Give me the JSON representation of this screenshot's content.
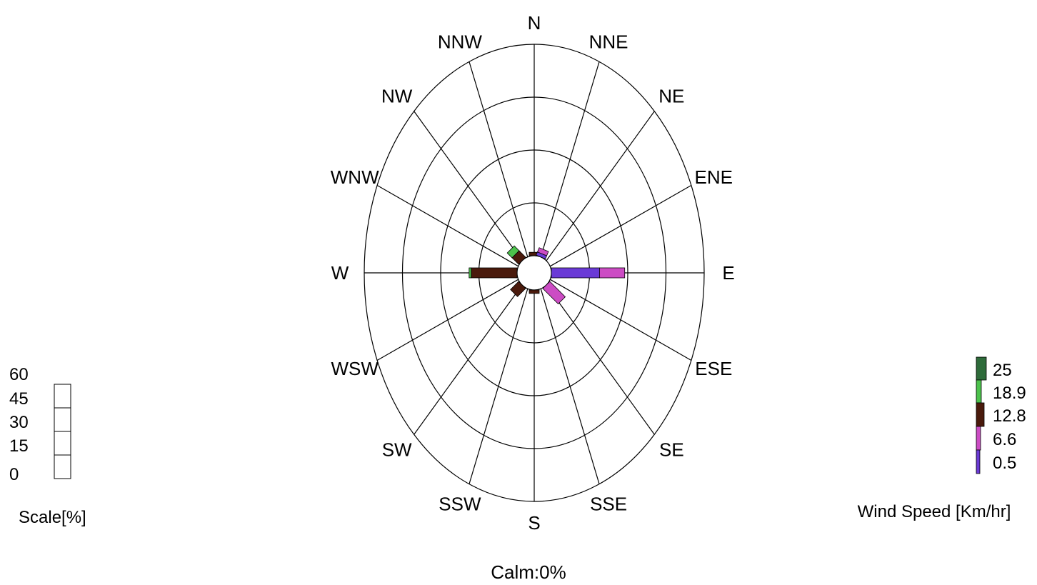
{
  "chart_data": {
    "type": "wind-rose",
    "directions": [
      "N",
      "NNE",
      "NE",
      "ENE",
      "E",
      "ESE",
      "SE",
      "SSE",
      "S",
      "SSW",
      "SW",
      "WSW",
      "W",
      "WNW",
      "NW",
      "NNW"
    ],
    "calm_label": "Calm:0%",
    "scale": {
      "title": "Scale[%]",
      "ticks": [
        "60",
        "45",
        "30",
        "15",
        "0"
      ],
      "max": 60
    },
    "legend": {
      "title": "Wind Speed [Km/hr]",
      "bins": [
        {
          "label": "25",
          "color": "#2e6b3a"
        },
        {
          "label": "18.9",
          "color": "#4cc24c"
        },
        {
          "label": "12.8",
          "color": "#4a1a0c"
        },
        {
          "label": "6.6",
          "color": "#cc4cc4"
        },
        {
          "label": "0.5",
          "color": "#6a3ad6"
        }
      ]
    },
    "series": [
      {
        "direction": "N",
        "segments": [
          {
            "bin": "12.8",
            "value": 1.5
          }
        ]
      },
      {
        "direction": "NNE",
        "segments": [
          {
            "bin": "0.5",
            "value": 1.5
          },
          {
            "bin": "6.6",
            "value": 2
          }
        ]
      },
      {
        "direction": "E",
        "segments": [
          {
            "bin": "0.5",
            "value": 21
          },
          {
            "bin": "6.6",
            "value": 11
          }
        ]
      },
      {
        "direction": "SE",
        "segments": [
          {
            "bin": "6.6",
            "value": 9.5
          }
        ]
      },
      {
        "direction": "S",
        "segments": [
          {
            "bin": "12.8",
            "value": 1.5
          }
        ]
      },
      {
        "direction": "SW",
        "segments": [
          {
            "bin": "12.8",
            "value": 5
          }
        ]
      },
      {
        "direction": "W",
        "segments": [
          {
            "bin": "12.8",
            "value": 20
          },
          {
            "bin": "18.9",
            "value": 0.8
          }
        ]
      },
      {
        "direction": "NW",
        "segments": [
          {
            "bin": "12.8",
            "value": 4
          },
          {
            "bin": "18.9",
            "value": 3
          }
        ]
      }
    ]
  }
}
